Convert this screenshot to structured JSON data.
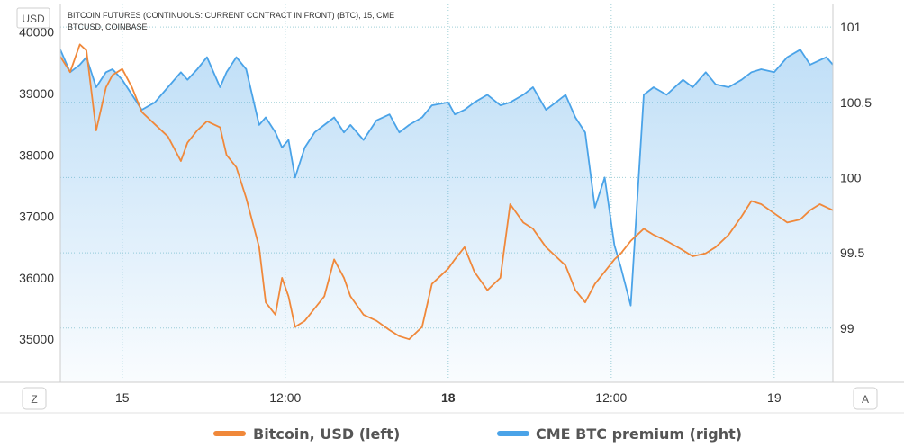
{
  "header": {
    "title": "BITCOIN FUTURES (CONTINUOUS: CURRENT CONTRACT IN FRONT) (BTC), 15, CME",
    "subtitle": "BTCUSD, COINBASE"
  },
  "controls": {
    "currency_label": "USD",
    "zoom_label": "Z",
    "auto_label": "A"
  },
  "chart_data": {
    "type": "line",
    "grid": true,
    "legend_position": "bottom",
    "x_ticks": [
      {
        "pos": 15.0,
        "label": "15",
        "bold": false
      },
      {
        "pos": 15.5,
        "label": "12:00",
        "bold": false
      },
      {
        "pos": 16.0,
        "label": "18",
        "bold": true
      },
      {
        "pos": 16.5,
        "label": "12:00",
        "bold": false
      },
      {
        "pos": 17.0,
        "label": "19",
        "bold": false
      }
    ],
    "xlim": [
      14.81,
      17.18
    ],
    "left_axis": {
      "ylim": [
        34300,
        40450
      ],
      "ticks": [
        "40000",
        "39000",
        "38000",
        "37000",
        "36000",
        "35000"
      ],
      "tick_values": [
        40000,
        39000,
        38000,
        37000,
        36000,
        35000
      ]
    },
    "right_axis": {
      "ylim": [
        98.64,
        101.15
      ],
      "ticks": [
        "101",
        "100.5",
        "100",
        "99.5",
        "99"
      ],
      "tick_values": [
        101,
        100.5,
        100,
        99.5,
        99
      ]
    },
    "series": [
      {
        "name": "Bitcoin, USD (left)",
        "axis": "left",
        "color": "#f0883a",
        "x": [
          14.81,
          14.84,
          14.87,
          14.89,
          14.92,
          14.95,
          14.97,
          15.0,
          15.03,
          15.06,
          15.1,
          15.14,
          15.18,
          15.2,
          15.23,
          15.26,
          15.3,
          15.32,
          15.35,
          15.38,
          15.42,
          15.44,
          15.47,
          15.49,
          15.51,
          15.53,
          15.56,
          15.59,
          15.62,
          15.65,
          15.68,
          15.7,
          15.74,
          15.78,
          15.82,
          15.85,
          15.88,
          15.92,
          15.95,
          16.0,
          16.02,
          16.05,
          16.08,
          16.12,
          16.16,
          16.19,
          16.23,
          16.26,
          16.3,
          16.33,
          16.36,
          16.39,
          16.42,
          16.45,
          16.48,
          16.51,
          16.53,
          16.56,
          16.6,
          16.63,
          16.67,
          16.72,
          16.75,
          16.79,
          16.82,
          16.86,
          16.9,
          16.93,
          16.96,
          17.0,
          17.04,
          17.08,
          17.11,
          17.14,
          17.16,
          17.18
        ],
        "values": [
          39600,
          39350,
          39800,
          39700,
          38400,
          39100,
          39300,
          39400,
          39100,
          38700,
          38500,
          38300,
          37900,
          38200,
          38400,
          38550,
          38450,
          38000,
          37800,
          37300,
          36500,
          35600,
          35400,
          36000,
          35700,
          35200,
          35300,
          35500,
          35700,
          36300,
          36000,
          35700,
          35400,
          35300,
          35150,
          35050,
          35000,
          35200,
          35900,
          36150,
          36300,
          36500,
          36100,
          35800,
          36000,
          37200,
          36900,
          36800,
          36500,
          36350,
          36200,
          35800,
          35600,
          35900,
          36100,
          36300,
          36400,
          36600,
          36800,
          36700,
          36600,
          36450,
          36350,
          36400,
          36500,
          36700,
          37000,
          37250,
          37200,
          37050,
          36900,
          36950,
          37100,
          37200,
          37150,
          37100
        ]
      },
      {
        "name": "CME BTC premium (right)",
        "axis": "right",
        "color": "#4aa3e8",
        "x": [
          14.81,
          14.84,
          14.87,
          14.89,
          14.92,
          14.95,
          14.97,
          15.0,
          15.03,
          15.06,
          15.1,
          15.14,
          15.18,
          15.2,
          15.23,
          15.26,
          15.3,
          15.32,
          15.35,
          15.38,
          15.42,
          15.44,
          15.47,
          15.49,
          15.51,
          15.53,
          15.56,
          15.59,
          15.62,
          15.65,
          15.68,
          15.7,
          15.74,
          15.78,
          15.82,
          15.85,
          15.88,
          15.92,
          15.95,
          16.0,
          16.02,
          16.05,
          16.08,
          16.12,
          16.16,
          16.19,
          16.23,
          16.26,
          16.3,
          16.33,
          16.36,
          16.39,
          16.42,
          16.45,
          16.48,
          16.51,
          16.53,
          16.56,
          16.6,
          16.63,
          16.67,
          16.72,
          16.75,
          16.79,
          16.82,
          16.86,
          16.9,
          16.93,
          16.96,
          17.0,
          17.04,
          17.08,
          17.11,
          17.14,
          17.16,
          17.18
        ],
        "values": [
          100.85,
          100.7,
          100.75,
          100.8,
          100.6,
          100.7,
          100.72,
          100.65,
          100.55,
          100.45,
          100.5,
          100.6,
          100.7,
          100.65,
          100.72,
          100.8,
          100.6,
          100.7,
          100.8,
          100.72,
          100.35,
          100.4,
          100.3,
          100.2,
          100.25,
          100.0,
          100.2,
          100.3,
          100.35,
          100.4,
          100.3,
          100.35,
          100.25,
          100.38,
          100.42,
          100.3,
          100.35,
          100.4,
          100.48,
          100.5,
          100.42,
          100.45,
          100.5,
          100.55,
          100.48,
          100.5,
          100.55,
          100.6,
          100.45,
          100.5,
          100.55,
          100.4,
          100.3,
          99.8,
          100.0,
          99.55,
          99.4,
          99.15,
          100.55,
          100.6,
          100.55,
          100.65,
          100.6,
          100.7,
          100.62,
          100.6,
          100.65,
          100.7,
          100.72,
          100.7,
          100.8,
          100.85,
          100.75,
          100.78,
          100.8,
          100.75
        ]
      }
    ]
  },
  "legend": [
    {
      "label": "Bitcoin, USD (left)",
      "color": "#f0883a"
    },
    {
      "label": "CME BTC premium (right)",
      "color": "#4aa3e8"
    }
  ]
}
